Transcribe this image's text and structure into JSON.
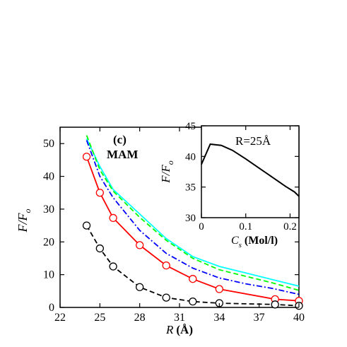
{
  "chart_data": [
    {
      "type": "line",
      "panel_label": "(c)",
      "annotation": "MAM",
      "xlabel": "R (Å)",
      "xlabel_main": "R",
      "xlabel_unit": "(Å)",
      "ylabel": "F/F0",
      "ylabel_main": "F/F",
      "ylabel_sub": "o",
      "xlim": [
        22,
        40
      ],
      "ylim": [
        0,
        55
      ],
      "xticks": [
        22,
        25,
        28,
        31,
        34,
        37,
        40
      ],
      "yticks": [
        0,
        10,
        20,
        30,
        40,
        50
      ],
      "colors": {
        "red": "#ff0000",
        "black": "#000000",
        "blue": "#0000ff",
        "green": "#00ff00",
        "cyan": "#00ffff"
      },
      "series": [
        {
          "color_key": "cyan",
          "style": "solid",
          "markers": false,
          "points": [
            [
              24,
              51.5
            ],
            [
              25,
              43
            ],
            [
              26,
              36
            ],
            [
              28,
              28.5
            ],
            [
              30,
              21
            ],
            [
              32,
              15.5
            ],
            [
              34,
              12.5
            ],
            [
              36,
              10.5
            ],
            [
              38,
              8.5
            ],
            [
              40,
              6.5
            ]
          ]
        },
        {
          "color_key": "green",
          "style": "dashed",
          "markers": false,
          "points": [
            [
              24,
              52.5
            ],
            [
              25,
              42
            ],
            [
              26,
              35.5
            ],
            [
              28,
              27.5
            ],
            [
              30,
              20.5
            ],
            [
              32,
              15
            ],
            [
              34,
              11.5
            ],
            [
              36,
              9.5
            ],
            [
              38,
              7.5
            ],
            [
              40,
              5.2
            ]
          ]
        },
        {
          "color_key": "blue",
          "style": "dashdot",
          "markers": false,
          "points": [
            [
              24,
              51
            ],
            [
              25,
              40
            ],
            [
              26,
              33.5
            ],
            [
              28,
              23.5
            ],
            [
              30,
              16.5
            ],
            [
              32,
              12
            ],
            [
              34,
              9
            ],
            [
              36,
              7.2
            ],
            [
              38,
              5.8
            ],
            [
              40,
              4
            ]
          ]
        },
        {
          "color_key": "red",
          "style": "solid",
          "markers": true,
          "points": [
            [
              24,
              46
            ],
            [
              25,
              35
            ],
            [
              26,
              27.3
            ],
            [
              28,
              19
            ],
            [
              30,
              12.8
            ],
            [
              32,
              8.7
            ],
            [
              34,
              5.6
            ],
            [
              38.2,
              2.5
            ],
            [
              40,
              2
            ]
          ]
        },
        {
          "color_key": "black",
          "style": "dashed",
          "markers": true,
          "points": [
            [
              24,
              25
            ],
            [
              25,
              18
            ],
            [
              26,
              12.5
            ],
            [
              28,
              6.2
            ],
            [
              30,
              3
            ],
            [
              32,
              1.8
            ],
            [
              34,
              1.3
            ],
            [
              38.2,
              0.9
            ],
            [
              40,
              0.5
            ]
          ]
        }
      ]
    },
    {
      "type": "line",
      "annotation": "R=25Å",
      "xlabel": "Cs (Mol/l)",
      "xlabel_main": "C",
      "xlabel_sub": "s",
      "xlabel_unit": "(Mol/l)",
      "ylabel": "F/F0",
      "ylabel_main": "F/F",
      "ylabel_sub": "o",
      "xlim": [
        0,
        0.22
      ],
      "ylim": [
        30,
        45
      ],
      "xticks": [
        "0",
        "0.1",
        "0.2"
      ],
      "xtick_values": [
        0,
        0.1,
        0.2
      ],
      "yticks": [
        30,
        35,
        40,
        45
      ],
      "series": [
        {
          "color_key": "black",
          "style": "solid",
          "markers": false,
          "points": [
            [
              0,
              38.7
            ],
            [
              0.02,
              42
            ],
            [
              0.045,
              41.8
            ],
            [
              0.07,
              41
            ],
            [
              0.1,
              39.6
            ],
            [
              0.13,
              38.1
            ],
            [
              0.16,
              36.6
            ],
            [
              0.19,
              35.1
            ],
            [
              0.21,
              34.2
            ],
            [
              0.22,
              33.5
            ]
          ]
        }
      ]
    }
  ]
}
